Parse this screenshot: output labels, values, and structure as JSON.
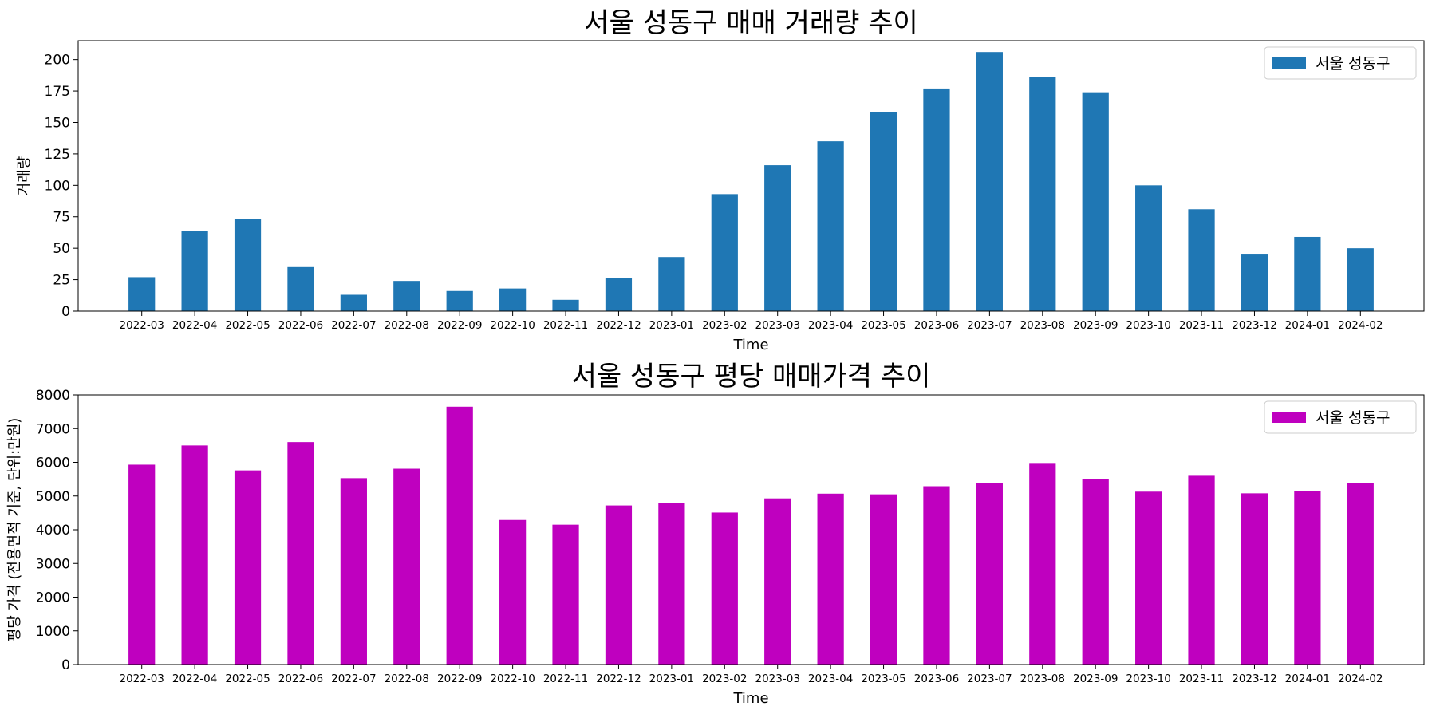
{
  "chart_data": [
    {
      "type": "bar",
      "title": "서울 성동구 매매 거래량 추이",
      "xlabel": "Time",
      "ylabel": "거래량",
      "ylim": [
        0,
        215
      ],
      "yticks": [
        0,
        25,
        50,
        75,
        100,
        125,
        150,
        175,
        200
      ],
      "grid": false,
      "legend_position": "top-right",
      "categories": [
        "2022-03",
        "2022-04",
        "2022-05",
        "2022-06",
        "2022-07",
        "2022-08",
        "2022-09",
        "2022-10",
        "2022-11",
        "2022-12",
        "2023-01",
        "2023-02",
        "2023-03",
        "2023-04",
        "2023-05",
        "2023-06",
        "2023-07",
        "2023-08",
        "2023-09",
        "2023-10",
        "2023-11",
        "2023-12",
        "2024-01",
        "2024-02"
      ],
      "series": [
        {
          "name": "서울 성동구",
          "color": "#1f77b4",
          "values": [
            27,
            64,
            73,
            35,
            13,
            24,
            16,
            18,
            9,
            26,
            43,
            93,
            116,
            135,
            158,
            177,
            206,
            186,
            174,
            100,
            81,
            45,
            59,
            50
          ]
        }
      ]
    },
    {
      "type": "bar",
      "title": "서울 성동구 평당 매매가격 추이",
      "xlabel": "Time",
      "ylabel": "평당 가격 (전용면적 기준, 단위:만원)",
      "ylim": [
        0,
        8000
      ],
      "yticks": [
        0,
        1000,
        2000,
        3000,
        4000,
        5000,
        6000,
        7000,
        8000
      ],
      "grid": false,
      "legend_position": "top-right",
      "categories": [
        "2022-03",
        "2022-04",
        "2022-05",
        "2022-06",
        "2022-07",
        "2022-08",
        "2022-09",
        "2022-10",
        "2022-11",
        "2022-12",
        "2023-01",
        "2023-02",
        "2023-03",
        "2023-04",
        "2023-05",
        "2023-06",
        "2023-07",
        "2023-08",
        "2023-09",
        "2023-10",
        "2023-11",
        "2023-12",
        "2024-01",
        "2024-02"
      ],
      "series": [
        {
          "name": "서울 성동구",
          "color": "#bf00bf",
          "values": [
            5930,
            6500,
            5760,
            6600,
            5530,
            5810,
            7650,
            4290,
            4150,
            4720,
            4790,
            4510,
            4930,
            5070,
            5050,
            5290,
            5390,
            5980,
            5500,
            5130,
            5600,
            5080,
            5140,
            5380
          ]
        }
      ]
    }
  ]
}
